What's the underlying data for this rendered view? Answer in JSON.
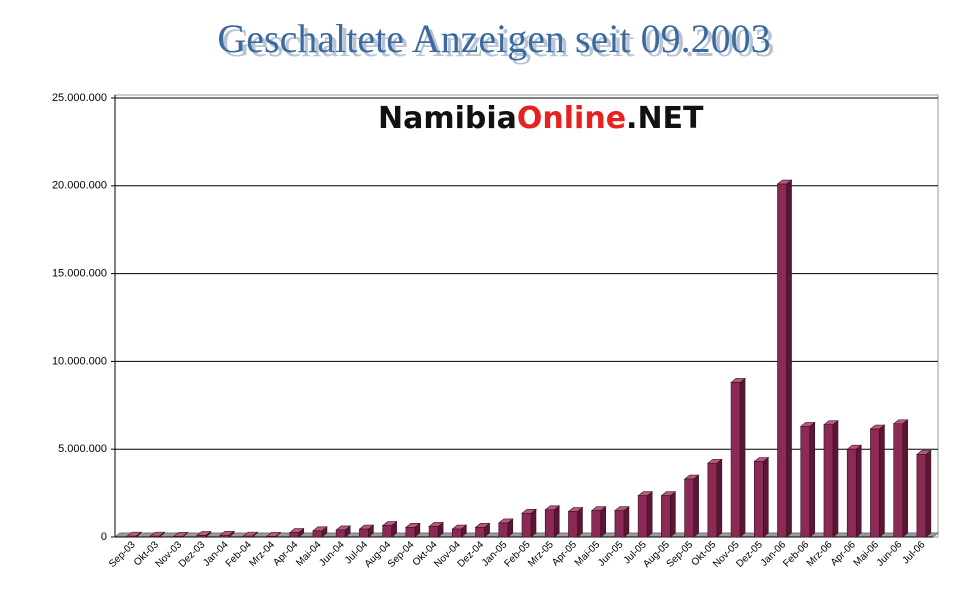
{
  "chart_data": {
    "type": "bar3d",
    "title": "Geschaltete Anzeigen seit 09.2003",
    "logo": {
      "part1": "Namibia",
      "part2": "Online",
      "part3": ".NET"
    },
    "categories": [
      "Sep-03",
      "Okt-03",
      "Nov-03",
      "Dez-03",
      "Jan-04",
      "Feb-04",
      "Mrz-04",
      "Apr-04",
      "Mai-04",
      "Jun-04",
      "Jul-04",
      "Aug-04",
      "Sep-04",
      "Okt-04",
      "Nov-04",
      "Dez-04",
      "Jan-05",
      "Feb-05",
      "Mrz-05",
      "Apr-05",
      "Mai-05",
      "Jun-05",
      "Jul-05",
      "Aug-05",
      "Sep-05",
      "Okt-05",
      "Nov-05",
      "Dez-05",
      "Jan-06",
      "Feb-06",
      "Mrz-06",
      "Apr-06",
      "Mai-06",
      "Jun-06",
      "Jul-06"
    ],
    "values": [
      50000,
      50000,
      30000,
      80000,
      100000,
      50000,
      30000,
      250000,
      350000,
      400000,
      450000,
      650000,
      550000,
      600000,
      450000,
      550000,
      800000,
      1350000,
      1550000,
      1450000,
      1500000,
      1500000,
      2350000,
      2350000,
      3300000,
      4200000,
      8800000,
      4300000,
      20100000,
      6300000,
      6400000,
      5000000,
      6150000,
      6450000,
      4700000
    ],
    "color": "#8b2a55",
    "ylim": [
      0,
      25000000
    ],
    "yticks": [
      {
        "value": 0,
        "label": "0"
      },
      {
        "value": 5000000,
        "label": "5.000.000"
      },
      {
        "value": 10000000,
        "label": "10.000.000"
      },
      {
        "value": 15000000,
        "label": "15.000.000"
      },
      {
        "value": 20000000,
        "label": "20.000.000"
      },
      {
        "value": 25000000,
        "label": "25.000.000"
      }
    ],
    "grid": true
  }
}
